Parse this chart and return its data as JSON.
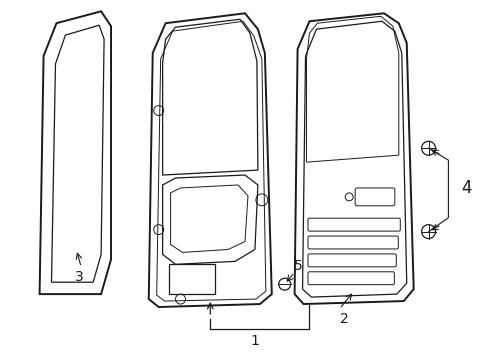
{
  "background": "#ffffff",
  "line_color": "#1a1a1a",
  "figsize": [
    4.89,
    3.6
  ],
  "dpi": 100,
  "label_fontsize": 9
}
